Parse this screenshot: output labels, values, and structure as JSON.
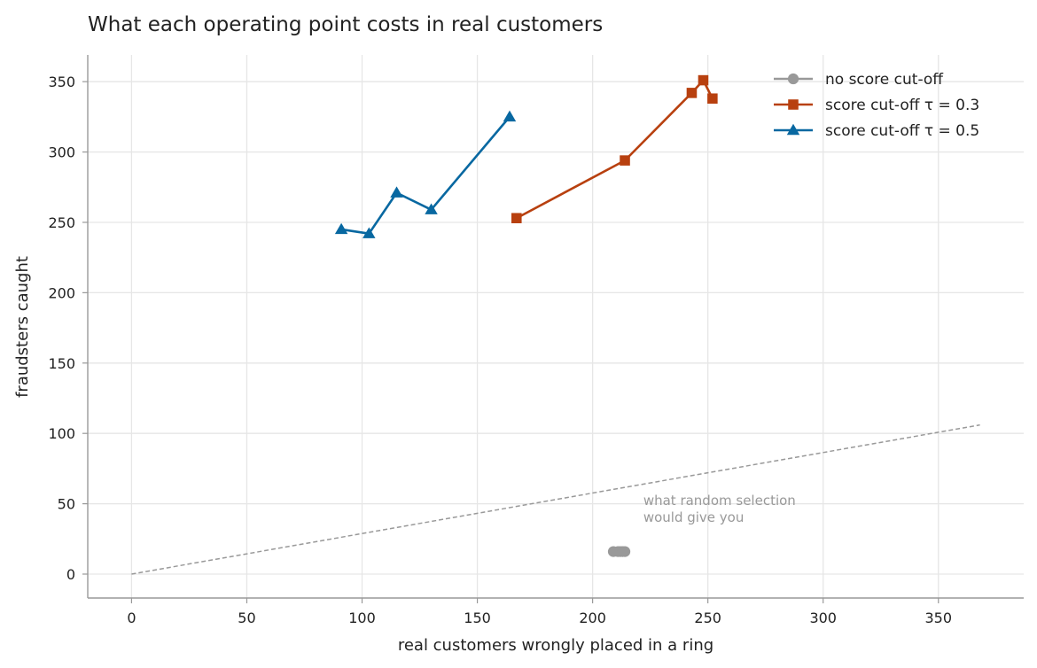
{
  "chart_data": {
    "type": "line",
    "title": "What each operating point costs in real customers",
    "xlabel": "real customers wrongly placed in a ring",
    "ylabel": "fraudsters caught",
    "xlim": [
      -19,
      387
    ],
    "ylim": [
      -17,
      369
    ],
    "xticks": [
      0,
      50,
      100,
      150,
      200,
      250,
      300,
      350
    ],
    "yticks": [
      0,
      50,
      100,
      150,
      200,
      250,
      300,
      350
    ],
    "grid": true,
    "legend_position": "top-right",
    "series": [
      {
        "name": "no score cut-off",
        "color": "#999999",
        "marker": "circle",
        "points": [
          [
            209,
            16
          ],
          [
            211,
            16
          ],
          [
            212,
            16
          ],
          [
            213,
            16
          ],
          [
            214,
            16
          ]
        ]
      },
      {
        "name": "score cut-off τ = 0.3",
        "color": "#b8400f",
        "marker": "square",
        "points": [
          [
            167,
            253
          ],
          [
            214,
            294
          ],
          [
            243,
            342
          ],
          [
            248,
            351
          ],
          [
            252,
            338
          ]
        ]
      },
      {
        "name": "score cut-off τ = 0.5",
        "color": "#0868a1",
        "marker": "triangle",
        "points": [
          [
            91,
            245
          ],
          [
            103,
            242
          ],
          [
            115,
            271
          ],
          [
            130,
            259
          ],
          [
            164,
            325
          ]
        ]
      }
    ],
    "reference_line": {
      "points": [
        [
          0,
          0
        ],
        [
          368,
          106
        ]
      ],
      "color": "#999999",
      "style": "dashed"
    },
    "annotation": {
      "lines": [
        "what random selection",
        "would give you"
      ],
      "x": 222,
      "y": 49
    }
  }
}
